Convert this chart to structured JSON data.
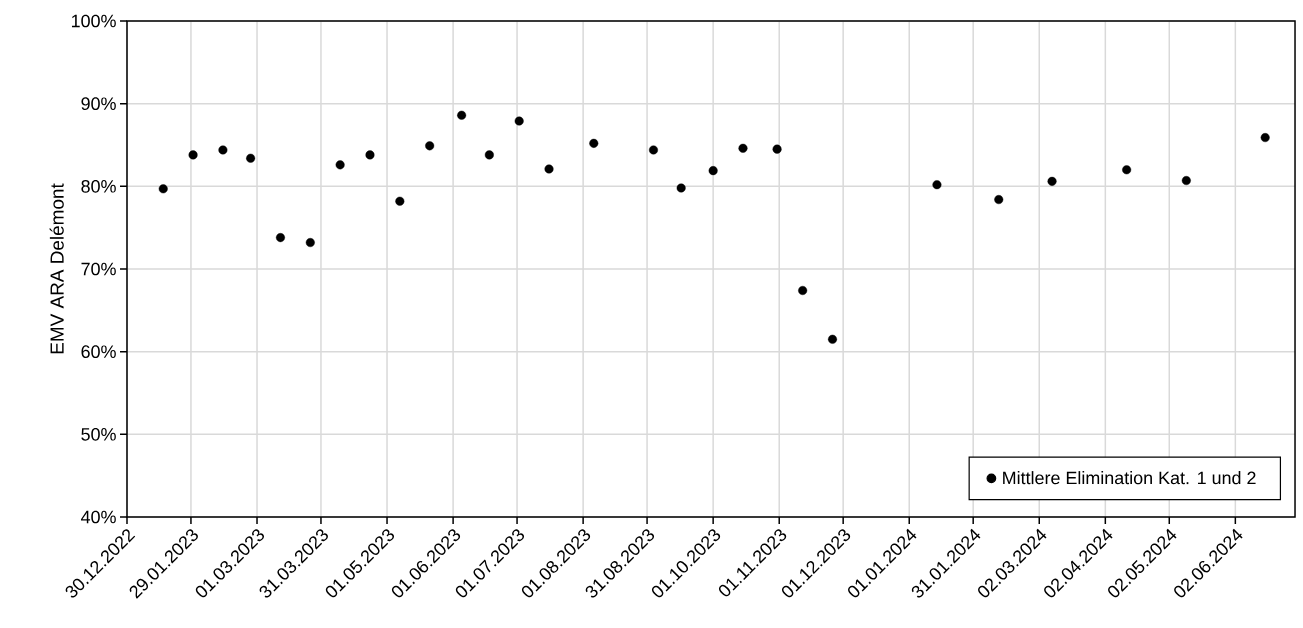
{
  "chart_data": {
    "type": "scatter",
    "ylabel": "EMV ARA Delémont",
    "xlim": [
      "2022-12-30",
      "2024-06-30"
    ],
    "xticks": [
      {
        "value": "2022-12-30",
        "label": "30.12.2022"
      },
      {
        "value": "2023-01-29",
        "label": "29.01.2023"
      },
      {
        "value": "2023-03-01",
        "label": "01.03.2023"
      },
      {
        "value": "2023-03-31",
        "label": "31.03.2023"
      },
      {
        "value": "2023-05-01",
        "label": "01.05.2023"
      },
      {
        "value": "2023-06-01",
        "label": "01.06.2023"
      },
      {
        "value": "2023-07-01",
        "label": "01.07.2023"
      },
      {
        "value": "2023-08-01",
        "label": "01.08.2023"
      },
      {
        "value": "2023-08-31",
        "label": "31.08.2023"
      },
      {
        "value": "2023-10-01",
        "label": "01.10.2023"
      },
      {
        "value": "2023-11-01",
        "label": "01.11.2023"
      },
      {
        "value": "2023-12-01",
        "label": "01.12.2023"
      },
      {
        "value": "2024-01-01",
        "label": "01.01.2024"
      },
      {
        "value": "2024-01-31",
        "label": "31.01.2024"
      },
      {
        "value": "2024-03-02",
        "label": "02.03.2024"
      },
      {
        "value": "2024-04-02",
        "label": "02.04.2024"
      },
      {
        "value": "2024-05-02",
        "label": "02.05.2024"
      },
      {
        "value": "2024-06-02",
        "label": "02.06.2024"
      }
    ],
    "ylim": [
      40,
      100
    ],
    "yticks": [
      {
        "value": 40,
        "label": "40%"
      },
      {
        "value": 50,
        "label": "50%"
      },
      {
        "value": 60,
        "label": "60%"
      },
      {
        "value": 70,
        "label": "70%"
      },
      {
        "value": 80,
        "label": "80%"
      },
      {
        "value": 90,
        "label": "90%"
      },
      {
        "value": 100,
        "label": "100%"
      }
    ],
    "grid": true,
    "legend": "bottom right",
    "marker": "circle",
    "series": [
      {
        "name": "Mittlere Elimination Kat. 1 und 2",
        "color": "#000000",
        "x": [
          "2023-01-16",
          "2023-01-30",
          "2023-02-13",
          "2023-02-26",
          "2023-03-12",
          "2023-03-26",
          "2023-04-09",
          "2023-04-23",
          "2023-05-07",
          "2023-05-21",
          "2023-06-05",
          "2023-06-18",
          "2023-07-02",
          "2023-07-16",
          "2023-08-06",
          "2023-09-03",
          "2023-09-16",
          "2023-10-01",
          "2023-10-15",
          "2023-10-31",
          "2023-11-12",
          "2023-11-26",
          "2024-01-14",
          "2024-02-12",
          "2024-03-08",
          "2024-04-12",
          "2024-05-10",
          "2024-06-16"
        ],
        "values": [
          79.7,
          83.8,
          84.4,
          83.4,
          73.8,
          73.2,
          82.6,
          83.8,
          78.2,
          84.9,
          88.6,
          83.8,
          87.9,
          82.1,
          85.2,
          84.4,
          79.8,
          81.9,
          84.6,
          84.5,
          67.4,
          61.5,
          80.2,
          78.4,
          80.6,
          82.0,
          80.7,
          85.9
        ]
      }
    ]
  }
}
